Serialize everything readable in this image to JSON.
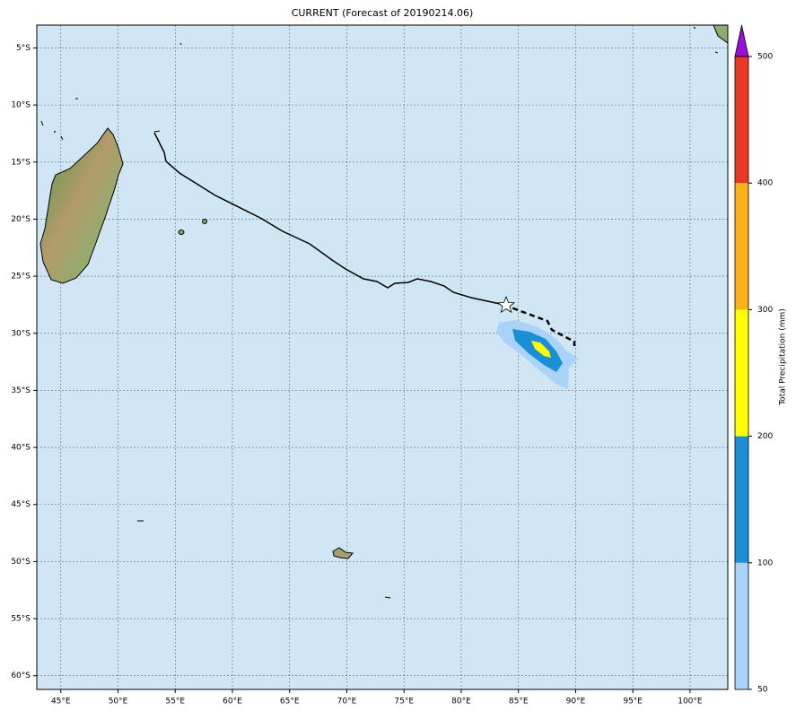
{
  "map": {
    "title": "CURRENT (Forecast of 20190214.06)",
    "lonlim": [
      42.9,
      103.3
    ],
    "latlim": [
      -61.2,
      -3
    ],
    "lon_ticks": [
      {
        "value": 45,
        "label": "45°E"
      },
      {
        "value": 50,
        "label": "50°E"
      },
      {
        "value": 55,
        "label": "55°E"
      },
      {
        "value": 60,
        "label": "60°E"
      },
      {
        "value": 65,
        "label": "65°E"
      },
      {
        "value": 70,
        "label": "70°E"
      },
      {
        "value": 75,
        "label": "75°E"
      },
      {
        "value": 80,
        "label": "80°E"
      },
      {
        "value": 85,
        "label": "85°E"
      },
      {
        "value": 90,
        "label": "90°E"
      },
      {
        "value": 95,
        "label": "95°E"
      },
      {
        "value": 100,
        "label": "100°E"
      }
    ],
    "lat_ticks": [
      {
        "value": -5,
        "label": "5°S"
      },
      {
        "value": -10,
        "label": "10°S"
      },
      {
        "value": -15,
        "label": "15°S"
      },
      {
        "value": -20,
        "label": "20°S"
      },
      {
        "value": -25,
        "label": "25°S"
      },
      {
        "value": -30,
        "label": "30°S"
      },
      {
        "value": -35,
        "label": "35°S"
      },
      {
        "value": -40,
        "label": "40°S"
      },
      {
        "value": -45,
        "label": "45°S"
      },
      {
        "value": -50,
        "label": "50°S"
      },
      {
        "value": -55,
        "label": "55°S"
      },
      {
        "value": -60,
        "label": "60°S"
      }
    ],
    "grid": true,
    "colorbar": {
      "label": "Total Precipitation (mm)",
      "ticks": [
        50,
        100,
        200,
        300,
        400,
        500
      ],
      "colors": [
        "#a9d3f8",
        "#1a8fd6",
        "#ffff00",
        "#fbb118",
        "#ea3a26"
      ],
      "extend_color": "#9b0fd6"
    }
  }
}
